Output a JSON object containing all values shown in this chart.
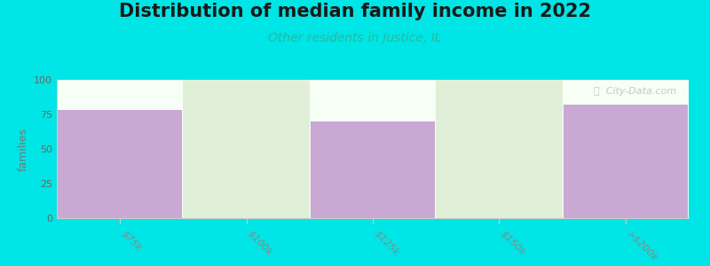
{
  "title": "Distribution of median family income in 2022",
  "subtitle": "Other residents in Justice, IL",
  "categories": [
    "$75k",
    "$100k",
    "$125k",
    "$150k",
    ">$200k"
  ],
  "values": [
    78,
    0,
    70,
    0,
    82
  ],
  "bar_color": "#c9a8d4",
  "bg_color": "#00e5e5",
  "plot_bg_top": "#f5fff5",
  "plot_bg_bottom": "#e8f8f0",
  "column_alt_color": "#e0f0d8",
  "ylabel": "families",
  "ylim": [
    0,
    100
  ],
  "yticks": [
    0,
    25,
    50,
    75,
    100
  ],
  "title_fontsize": 15,
  "subtitle_fontsize": 10,
  "subtitle_color": "#2ab8a0",
  "watermark": "ⓘ  City-Data.com"
}
